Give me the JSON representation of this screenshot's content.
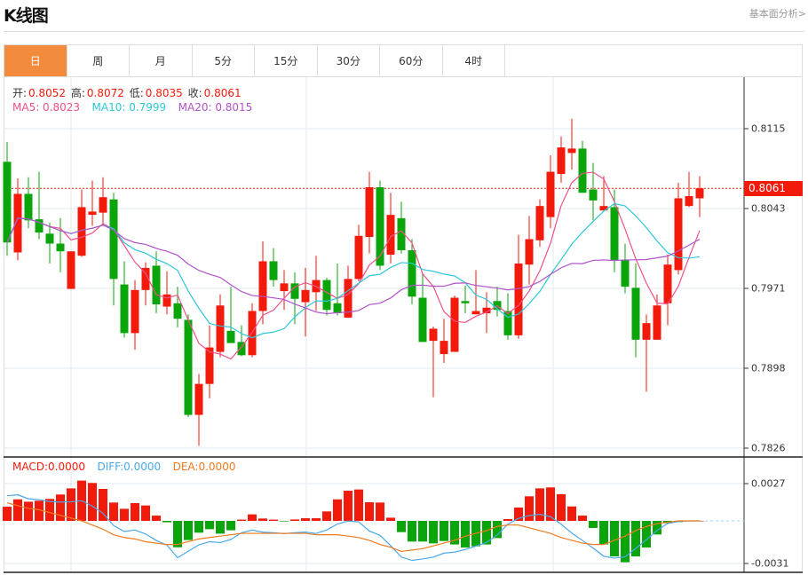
{
  "header": {
    "title": "K线图",
    "link": "基本面分析>"
  },
  "tabs": [
    {
      "label": "日",
      "active": true
    },
    {
      "label": "周"
    },
    {
      "label": "月"
    },
    {
      "label": "5分"
    },
    {
      "label": "15分"
    },
    {
      "label": "30分"
    },
    {
      "label": "60分"
    },
    {
      "label": "4时"
    }
  ],
  "ohlc_info": {
    "open_label": "开:",
    "open": "0.8052",
    "high_label": "高:",
    "high": "0.8072",
    "low_label": "低:",
    "low": "0.8035",
    "close_label": "收:",
    "close": "0.8061"
  },
  "ma_info": {
    "ma5": "MA5: 0.8023",
    "ma10": "MA10: 0.7999",
    "ma20": "MA20: 0.8015"
  },
  "macd_info": {
    "macd": "MACD:0.0000",
    "diff": "DIFF:0.0000",
    "dea": "DEA:0.0000"
  },
  "current_price": "0.8061",
  "colors": {
    "up": "#f21a0b",
    "down": "#0aa50a",
    "ma5": "#f0508a",
    "ma10": "#2ec7d9",
    "ma20": "#b052c8",
    "diff": "#4aa8ec",
    "dea": "#f07a1e",
    "tab_active": "#f28b3c"
  },
  "chart_data": {
    "type": "candlestick",
    "price_ticks": [
      "0.8115",
      "0.8043",
      "0.7971",
      "0.7898",
      "0.7826"
    ],
    "macd_ticks": [
      "0.0027",
      "-0.0031"
    ],
    "ylim": [
      0.7826,
      0.8115
    ],
    "candles": [
      [
        0.8085,
        0.8103,
        0.8,
        0.8012
      ],
      [
        0.8003,
        0.807,
        0.7996,
        0.8056
      ],
      [
        0.8056,
        0.8071,
        0.8025,
        0.8032
      ],
      [
        0.8033,
        0.8076,
        0.8015,
        0.8021
      ],
      [
        0.802,
        0.803,
        0.7993,
        0.8011
      ],
      [
        0.8011,
        0.8034,
        0.7985,
        0.8004
      ],
      [
        0.797,
        0.8004,
        0.797,
        0.8004
      ],
      [
        0.8,
        0.806,
        0.7999,
        0.8044
      ],
      [
        0.8037,
        0.8068,
        0.8027,
        0.804
      ],
      [
        0.8039,
        0.8071,
        0.8028,
        0.8053
      ],
      [
        0.8051,
        0.8057,
        0.7955,
        0.7979
      ],
      [
        0.7974,
        0.7995,
        0.7926,
        0.793
      ],
      [
        0.793,
        0.7978,
        0.7915,
        0.7969
      ],
      [
        0.7969,
        0.7994,
        0.7955,
        0.7989
      ],
      [
        0.7991,
        0.8004,
        0.7948,
        0.7956
      ],
      [
        0.7954,
        0.7986,
        0.7947,
        0.7965
      ],
      [
        0.7957,
        0.7972,
        0.7935,
        0.7943
      ],
      [
        0.7942,
        0.7947,
        0.7854,
        0.7856
      ],
      [
        0.7856,
        0.7893,
        0.7828,
        0.7884
      ],
      [
        0.7884,
        0.7937,
        0.7871,
        0.7917
      ],
      [
        0.7913,
        0.7965,
        0.7908,
        0.7955
      ],
      [
        0.7932,
        0.7972,
        0.7921,
        0.7921
      ],
      [
        0.7922,
        0.7937,
        0.7909,
        0.791
      ],
      [
        0.791,
        0.7957,
        0.7908,
        0.795
      ],
      [
        0.795,
        0.8013,
        0.7938,
        0.7995
      ],
      [
        0.7995,
        0.8007,
        0.7972,
        0.7978
      ],
      [
        0.7968,
        0.7987,
        0.7951,
        0.7975
      ],
      [
        0.7975,
        0.7985,
        0.7938,
        0.7961
      ],
      [
        0.7958,
        0.7989,
        0.7927,
        0.7969
      ],
      [
        0.7967,
        0.8,
        0.795,
        0.7978
      ],
      [
        0.7978,
        0.798,
        0.7946,
        0.7951
      ],
      [
        0.7957,
        0.7993,
        0.7946,
        0.7948
      ],
      [
        0.7944,
        0.7991,
        0.7944,
        0.7979
      ],
      [
        0.7979,
        0.8028,
        0.7977,
        0.8018
      ],
      [
        0.8017,
        0.8076,
        0.8002,
        0.8062
      ],
      [
        0.8062,
        0.8068,
        0.7987,
        0.7991
      ],
      [
        0.8001,
        0.8057,
        0.7993,
        0.8037
      ],
      [
        0.8034,
        0.8049,
        0.8002,
        0.8005
      ],
      [
        0.8005,
        0.8015,
        0.7956,
        0.7963
      ],
      [
        0.7962,
        0.7984,
        0.7922,
        0.7922
      ],
      [
        0.7923,
        0.7936,
        0.7872,
        0.7934
      ],
      [
        0.7911,
        0.7943,
        0.7903,
        0.7923
      ],
      [
        0.7913,
        0.7964,
        0.7913,
        0.7962
      ],
      [
        0.7959,
        0.7973,
        0.7948,
        0.7957
      ],
      [
        0.7947,
        0.7987,
        0.7947,
        0.795
      ],
      [
        0.7948,
        0.7967,
        0.793,
        0.7953
      ],
      [
        0.7959,
        0.7972,
        0.7945,
        0.7951
      ],
      [
        0.795,
        0.7966,
        0.7924,
        0.7928
      ],
      [
        0.7928,
        0.8019,
        0.7925,
        0.7993
      ],
      [
        0.7992,
        0.8036,
        0.7974,
        0.8015
      ],
      [
        0.8014,
        0.8051,
        0.8008,
        0.8045
      ],
      [
        0.8035,
        0.8091,
        0.8025,
        0.8076
      ],
      [
        0.8074,
        0.8108,
        0.8066,
        0.8098
      ],
      [
        0.8093,
        0.8124,
        0.8078,
        0.8097
      ],
      [
        0.8097,
        0.8104,
        0.8057,
        0.8057
      ],
      [
        0.806,
        0.8084,
        0.8032,
        0.805
      ],
      [
        0.8041,
        0.8072,
        0.804,
        0.8045
      ],
      [
        0.8044,
        0.806,
        0.7985,
        0.7996
      ],
      [
        0.7996,
        0.8011,
        0.7966,
        0.7972
      ],
      [
        0.7971,
        0.7993,
        0.7908,
        0.7924
      ],
      [
        0.7924,
        0.7947,
        0.7877,
        0.7939
      ],
      [
        0.7924,
        0.7965,
        0.7924,
        0.7955
      ],
      [
        0.7957,
        0.8001,
        0.7937,
        0.7992
      ],
      [
        0.7987,
        0.8066,
        0.7983,
        0.8052
      ],
      [
        0.8045,
        0.8076,
        0.8044,
        0.8054
      ],
      [
        0.8052,
        0.8072,
        0.8035,
        0.8061
      ]
    ],
    "macd": [
      0.00102,
      0.00155,
      0.00138,
      0.00145,
      0.00158,
      0.0019,
      0.00234,
      0.0029,
      0.00273,
      0.0023,
      0.00132,
      0.00087,
      0.00128,
      0.00111,
      0.00038,
      -0.0001,
      -0.0019,
      -0.00138,
      -0.00085,
      -0.0006,
      -0.00092,
      -0.00068,
      9e-05,
      0.00047,
      0.00017,
      9e-05,
      -4e-05,
      0.0001,
      0.00019,
      0.00019,
      0.00068,
      0.00155,
      0.00217,
      0.00226,
      0.00134,
      0.00132,
      0.00023,
      -0.00081,
      -0.00149,
      -0.00149,
      -0.00162,
      -0.00145,
      -0.0017,
      -0.00192,
      -0.00183,
      -0.0017,
      -0.00124,
      0.00013,
      0.00096,
      0.00177,
      0.00234,
      0.00241,
      0.00192,
      0.00104,
      0.00038,
      -0.00051,
      -0.0017,
      -0.00256,
      -0.00298,
      -0.00256,
      -0.00192,
      -0.00098,
      -0.00017,
      -9e-05,
      0,
      0
    ],
    "dea": [
      0.0013,
      0.0011,
      0.0009,
      0.0008,
      0.0006,
      0.0004,
      0.0002,
      0.0,
      -0.0003,
      -0.0006,
      -0.001,
      -0.0012,
      -0.0013,
      -0.0015,
      -0.0016,
      -0.0017,
      -0.0017,
      -0.0015,
      -0.0013,
      -0.0012,
      -0.0011,
      -0.001,
      -0.0009,
      -0.0009,
      -0.0009,
      -0.0009,
      -0.0009,
      -0.0009,
      -0.0009,
      -0.001,
      -0.001,
      -0.001,
      -0.0011,
      -0.0012,
      -0.0014,
      -0.0017,
      -0.0019,
      -0.0022,
      -0.0021,
      -0.002,
      -0.0018,
      -0.0016,
      -0.0014,
      -0.0011,
      -0.0009,
      -0.0007,
      -0.0004,
      -0.0003,
      -0.0003,
      -0.0005,
      -0.0007,
      -0.0009,
      -0.0012,
      -0.0014,
      -0.0016,
      -0.0017,
      -0.0017,
      -0.0014,
      -0.0011,
      -0.0007,
      -0.0004,
      -0.0002,
      -0.0001,
      0,
      0,
      0
    ]
  }
}
